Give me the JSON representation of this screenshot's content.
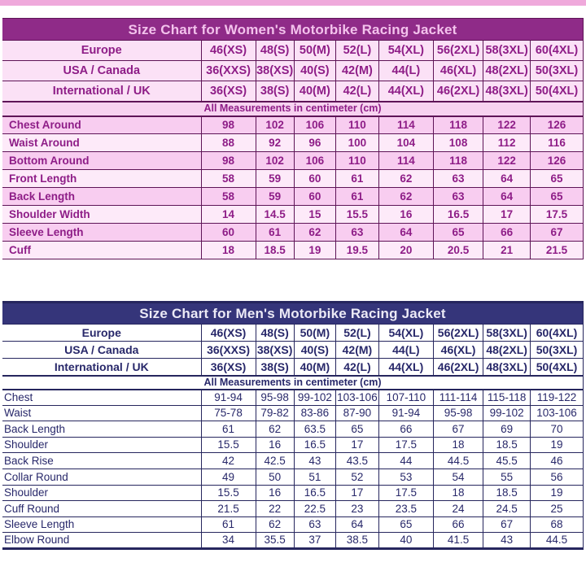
{
  "page": {
    "top_strip_color": "#efa9db",
    "background_color": "#ffffff"
  },
  "women_chart": {
    "title": "Size Chart for Women's Motorbike Racing Jacket",
    "note": "All Measurements in centimeter (cm)",
    "theme": {
      "title_bg": "#8f2b88",
      "title_color": "#f3c2ec",
      "border_color": "#5e1457",
      "text_color": "#8e1d87",
      "size_row_bg": "#fbe1f6",
      "note_bg": "#f7d2f0",
      "row_bg_a": "#f8cdf0",
      "row_bg_b": "#fdeaf9"
    },
    "size_rows": [
      {
        "label": "Europe",
        "values": [
          "46(XS)",
          "48(S)",
          "50(M)",
          "52(L)",
          "54(XL)",
          "56(2XL)",
          "58(3XL)",
          "60(4XL)"
        ]
      },
      {
        "label": "USA / Canada",
        "values": [
          "36(XXS)",
          "38(XS)",
          "40(S)",
          "42(M)",
          "44(L)",
          "46(XL)",
          "48(2XL)",
          "50(3XL)"
        ]
      },
      {
        "label": "International / UK",
        "values": [
          "36(XS)",
          "38(S)",
          "40(M)",
          "42(L)",
          "44(XL)",
          "46(2XL)",
          "48(3XL)",
          "50(4XL)"
        ]
      }
    ],
    "measurement_rows": [
      {
        "label": "Chest Around",
        "values": [
          "98",
          "102",
          "106",
          "110",
          "114",
          "118",
          "122",
          "126"
        ]
      },
      {
        "label": "Waist Around",
        "values": [
          "88",
          "92",
          "96",
          "100",
          "104",
          "108",
          "112",
          "116"
        ]
      },
      {
        "label": "Bottom Around",
        "values": [
          "98",
          "102",
          "106",
          "110",
          "114",
          "118",
          "122",
          "126"
        ]
      },
      {
        "label": "Front Length",
        "values": [
          "58",
          "59",
          "60",
          "61",
          "62",
          "63",
          "64",
          "65"
        ]
      },
      {
        "label": "Back Length",
        "values": [
          "58",
          "59",
          "60",
          "61",
          "62",
          "63",
          "64",
          "65"
        ]
      },
      {
        "label": "Shoulder Width",
        "values": [
          "14",
          "14.5",
          "15",
          "15.5",
          "16",
          "16.5",
          "17",
          "17.5"
        ]
      },
      {
        "label": "Sleeve Length",
        "values": [
          "60",
          "61",
          "62",
          "63",
          "64",
          "65",
          "66",
          "67"
        ]
      },
      {
        "label": "Cuff",
        "values": [
          "18",
          "18.5",
          "19",
          "19.5",
          "20",
          "20.5",
          "21",
          "21.5"
        ]
      }
    ]
  },
  "men_chart": {
    "title": "Size Chart for Men's Motorbike Racing Jacket",
    "note": "All Measurements in centimeter (cm)",
    "theme": {
      "title_bg": "#35357a",
      "title_color": "#eceaf6",
      "border_color": "#26265e",
      "text_color": "#28286a",
      "size_row_bg": "#ffffff",
      "note_bg": "#ffffff",
      "row_bg_a": "#ffffff",
      "row_bg_b": "#ffffff"
    },
    "size_rows": [
      {
        "label": "Europe",
        "values": [
          "46(XS)",
          "48(S)",
          "50(M)",
          "52(L)",
          "54(XL)",
          "56(2XL)",
          "58(3XL)",
          "60(4XL)"
        ]
      },
      {
        "label": "USA / Canada",
        "values": [
          "36(XXS)",
          "38(XS)",
          "40(S)",
          "42(M)",
          "44(L)",
          "46(XL)",
          "48(2XL)",
          "50(3XL)"
        ]
      },
      {
        "label": "International / UK",
        "values": [
          "36(XS)",
          "38(S)",
          "40(M)",
          "42(L)",
          "44(XL)",
          "46(2XL)",
          "48(3XL)",
          "50(4XL)"
        ]
      }
    ],
    "measurement_rows": [
      {
        "label": "Chest",
        "values": [
          "91-94",
          "95-98",
          "99-102",
          "103-106",
          "107-110",
          "111-114",
          "115-118",
          "119-122"
        ]
      },
      {
        "label": "Waist",
        "values": [
          "75-78",
          "79-82",
          "83-86",
          "87-90",
          "91-94",
          "95-98",
          "99-102",
          "103-106"
        ]
      },
      {
        "label": "Back Length",
        "values": [
          "61",
          "62",
          "63.5",
          "65",
          "66",
          "67",
          "69",
          "70"
        ]
      },
      {
        "label": "Shoulder",
        "values": [
          "15.5",
          "16",
          "16.5",
          "17",
          "17.5",
          "18",
          "18.5",
          "19"
        ]
      },
      {
        "label": "Back Rise",
        "values": [
          "42",
          "42.5",
          "43",
          "43.5",
          "44",
          "44.5",
          "45.5",
          "46"
        ]
      },
      {
        "label": "Collar Round",
        "values": [
          "49",
          "50",
          "51",
          "52",
          "53",
          "54",
          "55",
          "56"
        ]
      },
      {
        "label": "Shoulder",
        "values": [
          "15.5",
          "16",
          "16.5",
          "17",
          "17.5",
          "18",
          "18.5",
          "19"
        ]
      },
      {
        "label": "Cuff Round",
        "values": [
          "21.5",
          "22",
          "22.5",
          "23",
          "23.5",
          "24",
          "24.5",
          "25"
        ]
      },
      {
        "label": "Sleeve Length",
        "values": [
          "61",
          "62",
          "63",
          "64",
          "65",
          "66",
          "67",
          "68"
        ]
      },
      {
        "label": "Elbow Round",
        "values": [
          "34",
          "35.5",
          "37",
          "38.5",
          "40",
          "41.5",
          "43",
          "44.5"
        ]
      }
    ]
  }
}
